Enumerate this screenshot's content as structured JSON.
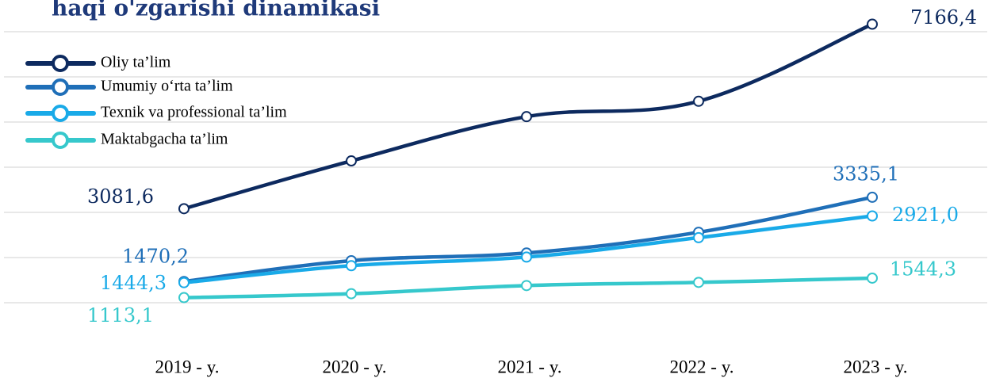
{
  "chart_data": {
    "type": "line",
    "title": "haqi o'zgarishi dinamikasi",
    "categories": [
      "2019 - y.",
      "2020 - y.",
      "2021 - y.",
      "2022 - y.",
      "2023 - y."
    ],
    "series": [
      {
        "name": "Oliy ta’lim",
        "color": "#0d2a5f",
        "values": [
          3081.6,
          4140,
          5120,
          5460,
          7166.4
        ],
        "value_labels": [
          "3081,6",
          null,
          null,
          null,
          "7166,4"
        ]
      },
      {
        "name": "Umumiy o‘rta ta’lim",
        "color": "#1f6fb8",
        "values": [
          1470.2,
          1930,
          2100,
          2560,
          3335.1
        ],
        "value_labels": [
          "1470,2",
          null,
          null,
          null,
          "3335,1"
        ]
      },
      {
        "name": "Texnik va professional ta’lim",
        "color": "#19aae8",
        "values": [
          1444.3,
          1820,
          2010,
          2440,
          2921.0
        ],
        "value_labels": [
          "1444,3",
          null,
          null,
          null,
          "2921,0"
        ]
      },
      {
        "name": "Maktabgacha ta’lim",
        "color": "#36c8cc",
        "values": [
          1113.1,
          1200,
          1380,
          1450,
          1544.3
        ],
        "value_labels": [
          "1113,1",
          null,
          null,
          null,
          "1544,3"
        ]
      }
    ],
    "ylim": [
      0,
      7600
    ],
    "yticks": [
      1000,
      2000,
      3000,
      4000,
      5000,
      6000,
      7000
    ],
    "grid": true,
    "legend": "upper left"
  }
}
